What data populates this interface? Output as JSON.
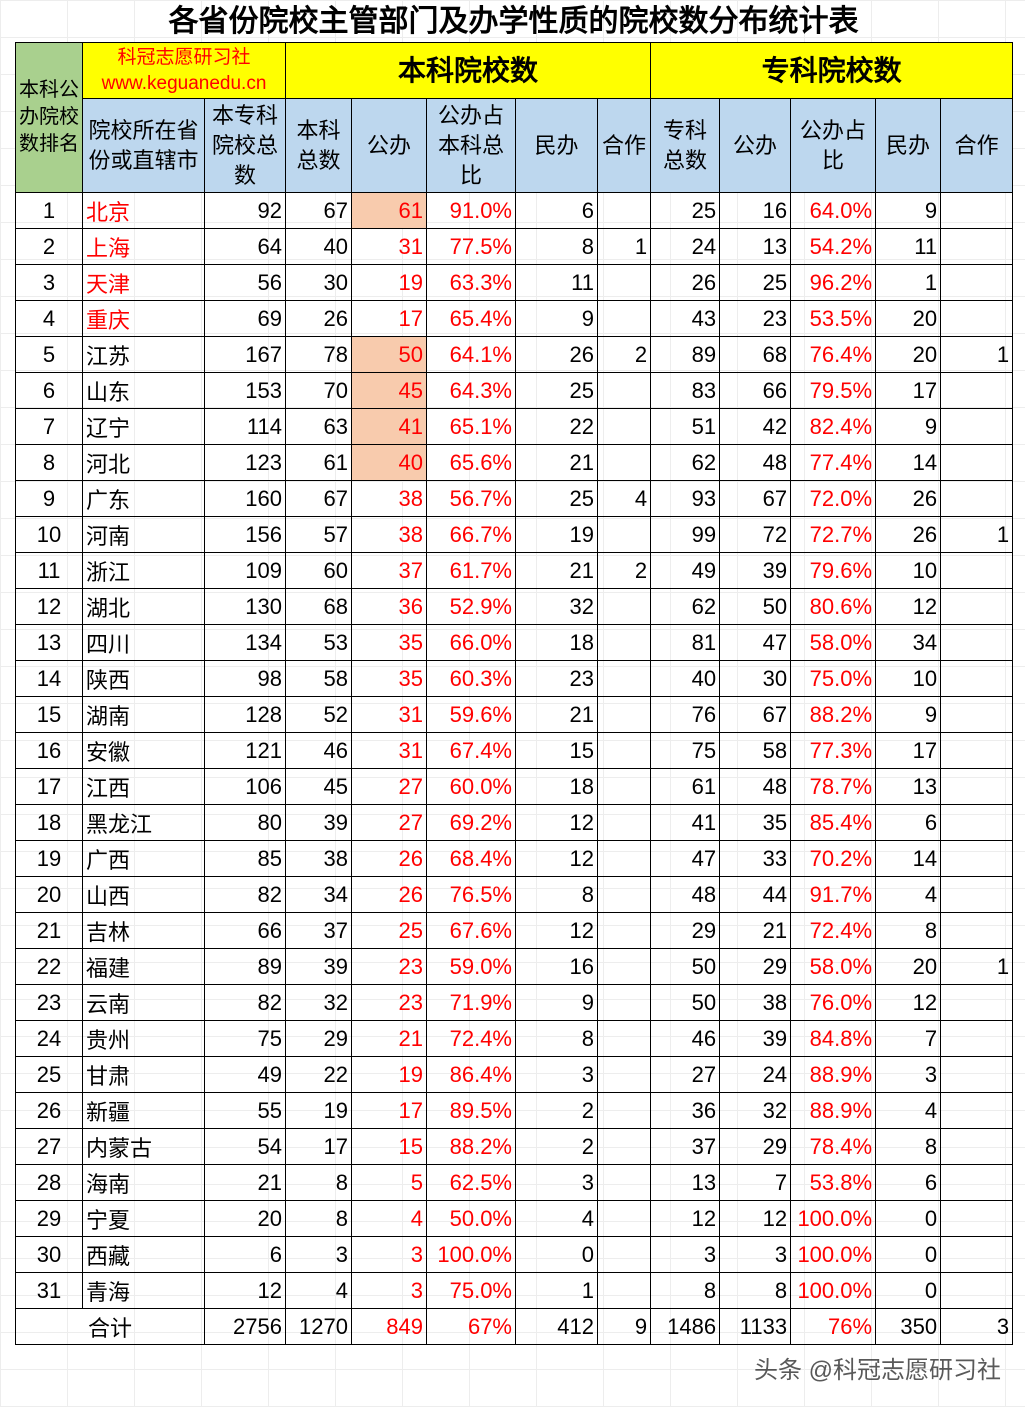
{
  "title": "各省份院校主管部门及办学性质的院校数分布统计表",
  "header": {
    "rank": "本科公办院校数排名",
    "brand_name": "科冠志愿研习社",
    "brand_url": "www.keguanedu.cn",
    "undergrad_group": "本科院校数",
    "college_group": "专科院校数",
    "province": "院校所在省份或直辖市",
    "total": "本专科院校总数",
    "ug_total": "本科总数",
    "ug_public": "公办",
    "ug_ratio": "公办占本科总比",
    "ug_private": "民办",
    "ug_coop": "合作",
    "col_total": "专科总数",
    "col_public": "公办",
    "col_ratio": "公办占比",
    "col_private": "民办",
    "col_coop": "合作"
  },
  "rows": [
    [
      "1",
      "北京",
      "92",
      "67",
      "61",
      "91.0%",
      "6",
      "",
      "25",
      "16",
      "64.0%",
      "9",
      ""
    ],
    [
      "2",
      "上海",
      "64",
      "40",
      "31",
      "77.5%",
      "8",
      "1",
      "24",
      "13",
      "54.2%",
      "11",
      ""
    ],
    [
      "3",
      "天津",
      "56",
      "30",
      "19",
      "63.3%",
      "11",
      "",
      "26",
      "25",
      "96.2%",
      "1",
      ""
    ],
    [
      "4",
      "重庆",
      "69",
      "26",
      "17",
      "65.4%",
      "9",
      "",
      "43",
      "23",
      "53.5%",
      "20",
      ""
    ],
    [
      "5",
      "江苏",
      "167",
      "78",
      "50",
      "64.1%",
      "26",
      "2",
      "89",
      "68",
      "76.4%",
      "20",
      "1"
    ],
    [
      "6",
      "山东",
      "153",
      "70",
      "45",
      "64.3%",
      "25",
      "",
      "83",
      "66",
      "79.5%",
      "17",
      ""
    ],
    [
      "7",
      "辽宁",
      "114",
      "63",
      "41",
      "65.1%",
      "22",
      "",
      "51",
      "42",
      "82.4%",
      "9",
      ""
    ],
    [
      "8",
      "河北",
      "123",
      "61",
      "40",
      "65.6%",
      "21",
      "",
      "62",
      "48",
      "77.4%",
      "14",
      ""
    ],
    [
      "9",
      "广东",
      "160",
      "67",
      "38",
      "56.7%",
      "25",
      "4",
      "93",
      "67",
      "72.0%",
      "26",
      ""
    ],
    [
      "10",
      "河南",
      "156",
      "57",
      "38",
      "66.7%",
      "19",
      "",
      "99",
      "72",
      "72.7%",
      "26",
      "1"
    ],
    [
      "11",
      "浙江",
      "109",
      "60",
      "37",
      "61.7%",
      "21",
      "2",
      "49",
      "39",
      "79.6%",
      "10",
      ""
    ],
    [
      "12",
      "湖北",
      "130",
      "68",
      "36",
      "52.9%",
      "32",
      "",
      "62",
      "50",
      "80.6%",
      "12",
      ""
    ],
    [
      "13",
      "四川",
      "134",
      "53",
      "35",
      "66.0%",
      "18",
      "",
      "81",
      "47",
      "58.0%",
      "34",
      ""
    ],
    [
      "14",
      "陕西",
      "98",
      "58",
      "35",
      "60.3%",
      "23",
      "",
      "40",
      "30",
      "75.0%",
      "10",
      ""
    ],
    [
      "15",
      "湖南",
      "128",
      "52",
      "31",
      "59.6%",
      "21",
      "",
      "76",
      "67",
      "88.2%",
      "9",
      ""
    ],
    [
      "16",
      "安徽",
      "121",
      "46",
      "31",
      "67.4%",
      "15",
      "",
      "75",
      "58",
      "77.3%",
      "17",
      ""
    ],
    [
      "17",
      "江西",
      "106",
      "45",
      "27",
      "60.0%",
      "18",
      "",
      "61",
      "48",
      "78.7%",
      "13",
      ""
    ],
    [
      "18",
      "黑龙江",
      "80",
      "39",
      "27",
      "69.2%",
      "12",
      "",
      "41",
      "35",
      "85.4%",
      "6",
      ""
    ],
    [
      "19",
      "广西",
      "85",
      "38",
      "26",
      "68.4%",
      "12",
      "",
      "47",
      "33",
      "70.2%",
      "14",
      ""
    ],
    [
      "20",
      "山西",
      "82",
      "34",
      "26",
      "76.5%",
      "8",
      "",
      "48",
      "44",
      "91.7%",
      "4",
      ""
    ],
    [
      "21",
      "吉林",
      "66",
      "37",
      "25",
      "67.6%",
      "12",
      "",
      "29",
      "21",
      "72.4%",
      "8",
      ""
    ],
    [
      "22",
      "福建",
      "89",
      "39",
      "23",
      "59.0%",
      "16",
      "",
      "50",
      "29",
      "58.0%",
      "20",
      "1"
    ],
    [
      "23",
      "云南",
      "82",
      "32",
      "23",
      "71.9%",
      "9",
      "",
      "50",
      "38",
      "76.0%",
      "12",
      ""
    ],
    [
      "24",
      "贵州",
      "75",
      "29",
      "21",
      "72.4%",
      "8",
      "",
      "46",
      "39",
      "84.8%",
      "7",
      ""
    ],
    [
      "25",
      "甘肃",
      "49",
      "22",
      "19",
      "86.4%",
      "3",
      "",
      "27",
      "24",
      "88.9%",
      "3",
      ""
    ],
    [
      "26",
      "新疆",
      "55",
      "19",
      "17",
      "89.5%",
      "2",
      "",
      "36",
      "32",
      "88.9%",
      "4",
      ""
    ],
    [
      "27",
      "内蒙古",
      "54",
      "17",
      "15",
      "88.2%",
      "2",
      "",
      "37",
      "29",
      "78.4%",
      "8",
      ""
    ],
    [
      "28",
      "海南",
      "21",
      "8",
      "5",
      "62.5%",
      "3",
      "",
      "13",
      "7",
      "53.8%",
      "6",
      ""
    ],
    [
      "29",
      "宁夏",
      "20",
      "8",
      "4",
      "50.0%",
      "4",
      "",
      "12",
      "12",
      "100.0%",
      "0",
      ""
    ],
    [
      "30",
      "西藏",
      "6",
      "3",
      "3",
      "100.0%",
      "0",
      "",
      "3",
      "3",
      "100.0%",
      "0",
      ""
    ],
    [
      "31",
      "青海",
      "12",
      "4",
      "3",
      "75.0%",
      "1",
      "",
      "8",
      "8",
      "100.0%",
      "0",
      ""
    ]
  ],
  "highlight_rows": [
    1,
    5,
    6,
    7,
    8
  ],
  "red_province_rows": [
    1,
    2,
    3,
    4
  ],
  "total": [
    "合计",
    "2756",
    "1270",
    "849",
    "67%",
    "412",
    "9",
    "1486",
    "1133",
    "76%",
    "350",
    "3"
  ],
  "watermark": "头条 @科冠志愿研习社",
  "colors": {
    "yellow": "#ffff00",
    "blue": "#bdd7ee",
    "green": "#a9d08e",
    "highlight": "#f8cbad",
    "red": "#ff0000"
  }
}
